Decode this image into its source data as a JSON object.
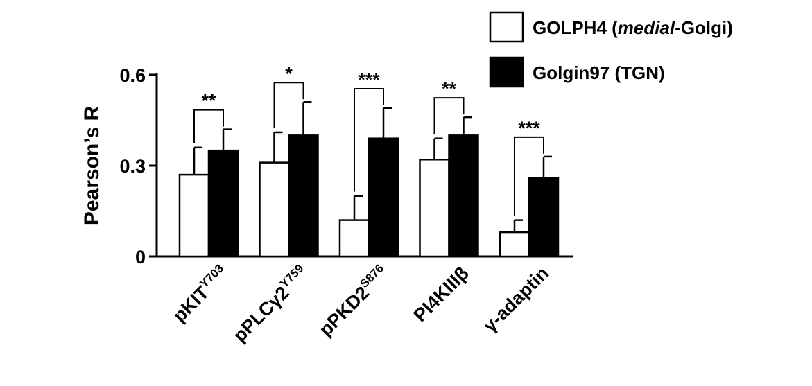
{
  "chart_data": {
    "type": "bar",
    "ylabel": "Pearson’s R",
    "ylim": [
      0,
      0.6
    ],
    "yticks": [
      {
        "value": 0,
        "label": "0"
      },
      {
        "value": 0.3,
        "label": "0.3"
      },
      {
        "value": 0.6,
        "label": "0.6"
      }
    ],
    "categories": [
      {
        "main": "pKIT",
        "sup": "Y703"
      },
      {
        "main": "pPLCγ2",
        "sup": "Y759"
      },
      {
        "main": "pPKD2",
        "sup": "S876"
      },
      {
        "main": "PI4KIIIβ",
        "sup": ""
      },
      {
        "main": "γ-adaptin",
        "sup": ""
      }
    ],
    "series": [
      {
        "name_parts": [
          "GOLPH4 (",
          "medial",
          "-Golgi)"
        ],
        "color": "#ffffff",
        "values": [
          0.27,
          0.31,
          0.12,
          0.32,
          0.08
        ],
        "errors": [
          0.09,
          0.1,
          0.08,
          0.07,
          0.04
        ]
      },
      {
        "name_parts": [
          "Golgin97 (TGN)"
        ],
        "color": "#000000",
        "values": [
          0.35,
          0.4,
          0.39,
          0.4,
          0.26
        ],
        "errors": [
          0.07,
          0.11,
          0.1,
          0.06,
          0.07
        ]
      }
    ],
    "significance": [
      "**",
      "*",
      "***",
      "**",
      "***"
    ],
    "legend_position": "top-right",
    "grid": false
  }
}
